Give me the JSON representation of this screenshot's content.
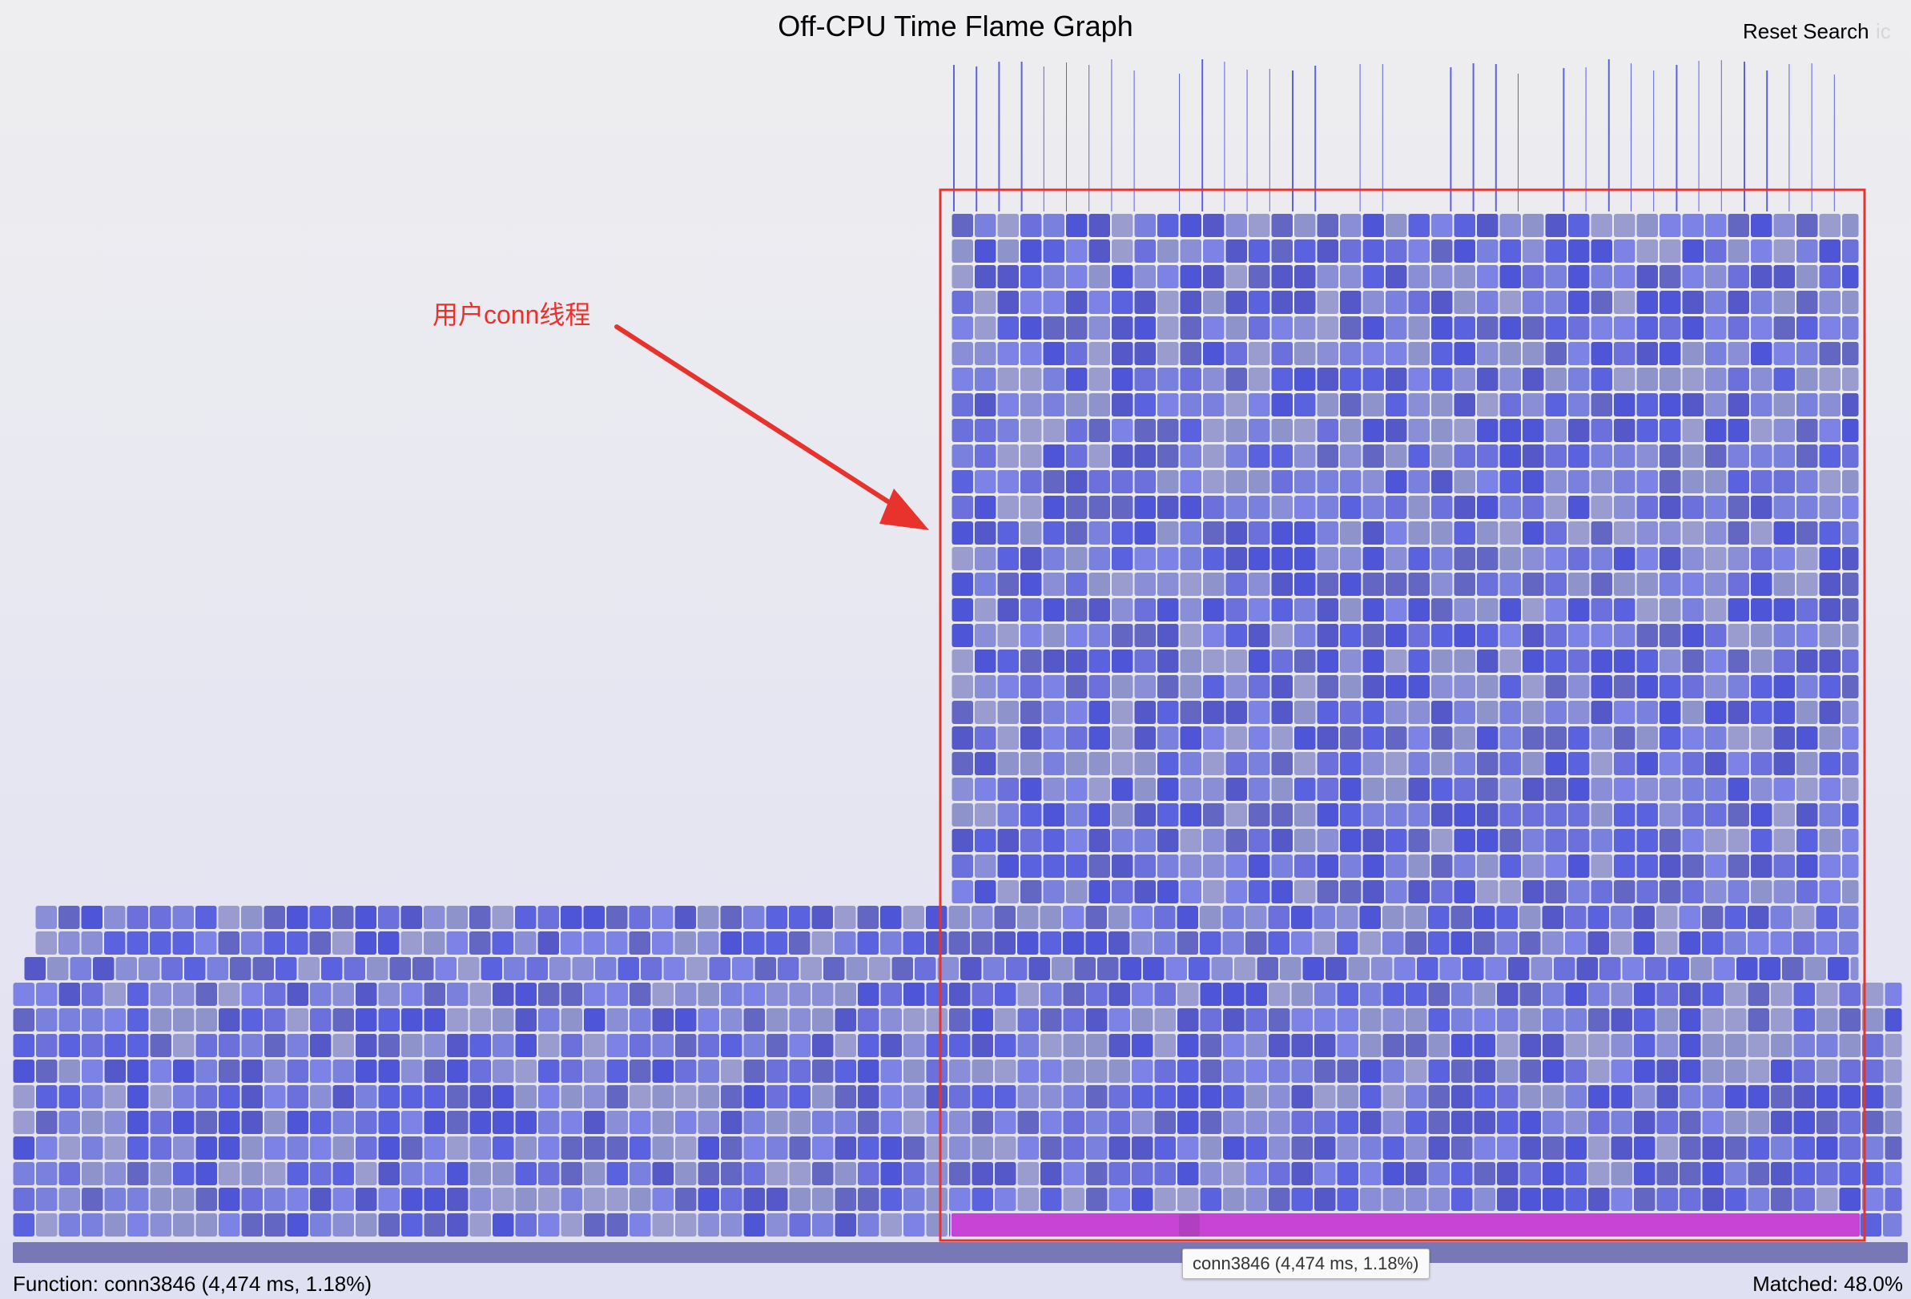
{
  "header": {
    "title": "Off-CPU Time Flame Graph",
    "reset_search_label": "Reset Search",
    "ic_label": "ic"
  },
  "annotation": {
    "label": "用户conn线程",
    "color": "#e8322c"
  },
  "tooltip": {
    "text": "conn3846 (4,474 ms, 1.18%)"
  },
  "status": {
    "function_text": "Function: conn3846 (4,474 ms, 1.18%)",
    "matched_text": "Matched: 48.0%"
  },
  "colors": {
    "frame_palette": [
      "#5b62e0",
      "#6b70dc",
      "#7a80de",
      "#8a8ed6",
      "#5458c8",
      "#7c82e6",
      "#6366c2",
      "#8f93cc",
      "#4e55d6",
      "#9a9cd0"
    ],
    "root_frame": "#7878b6",
    "highlighted_frame": "#c844d4",
    "selected_frame": "#b040c0",
    "annotation_box": "#e8322c"
  }
}
